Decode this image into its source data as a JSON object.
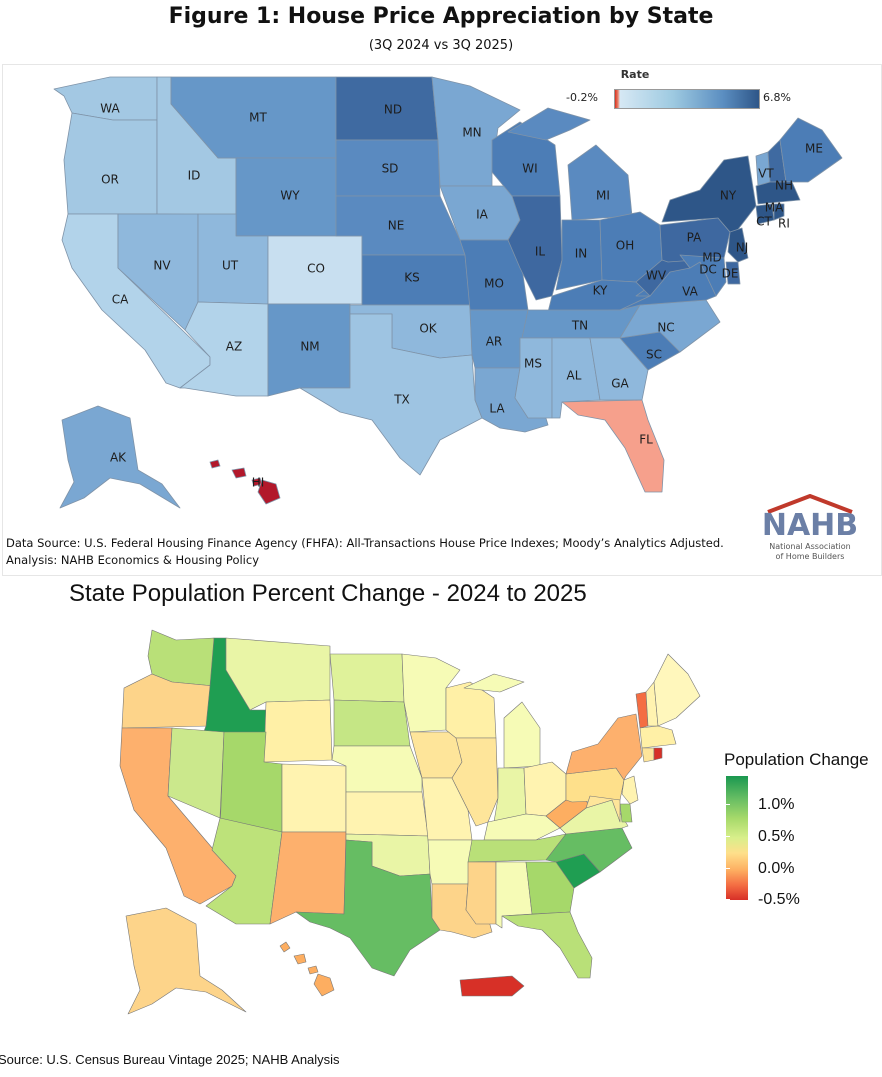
{
  "figure1": {
    "title": "Figure 1: House Price Appreciation by State",
    "subtitle": "(3Q 2024 vs 3Q 2025)",
    "legend": {
      "title": "Rate",
      "min_label": "-0.2%",
      "max_label": "6.8%",
      "low_color": "#d7301f",
      "high_color": "#2e5688"
    },
    "source_line1": "Data Source: U.S. Federal Housing Finance Agency (FHFA): All-Transactions House Price Indexes; Moody’s Analytics Adjusted.",
    "source_line2": "Analysis: NAHB Economics & Housing Policy",
    "logo": {
      "word": "NAHB",
      "sub1": "National Association",
      "sub2": "of Home Builders"
    },
    "state_labels": [
      "WA",
      "OR",
      "CA",
      "ID",
      "NV",
      "MT",
      "WY",
      "UT",
      "AZ",
      "CO",
      "NM",
      "ND",
      "SD",
      "NE",
      "KS",
      "OK",
      "TX",
      "MN",
      "IA",
      "MO",
      "AR",
      "LA",
      "WI",
      "IL",
      "MI",
      "IN",
      "OH",
      "KY",
      "TN",
      "MS",
      "AL",
      "GA",
      "FL",
      "SC",
      "NC",
      "VA",
      "WV",
      "PA",
      "NY",
      "VT",
      "NH",
      "ME",
      "MA",
      "CT",
      "RI",
      "NJ",
      "DE",
      "MD",
      "DC",
      "AK",
      "HI"
    ]
  },
  "figure2": {
    "title": "State Population Percent Change - 2024 to 2025",
    "legend_title": "Population Change",
    "legend_ticks": [
      "1.0%",
      "0.5%",
      "0.0%",
      "-0.5%"
    ],
    "source": "Source: U.S. Census Bureau Vintage 2025; NAHB Analysis"
  }
}
